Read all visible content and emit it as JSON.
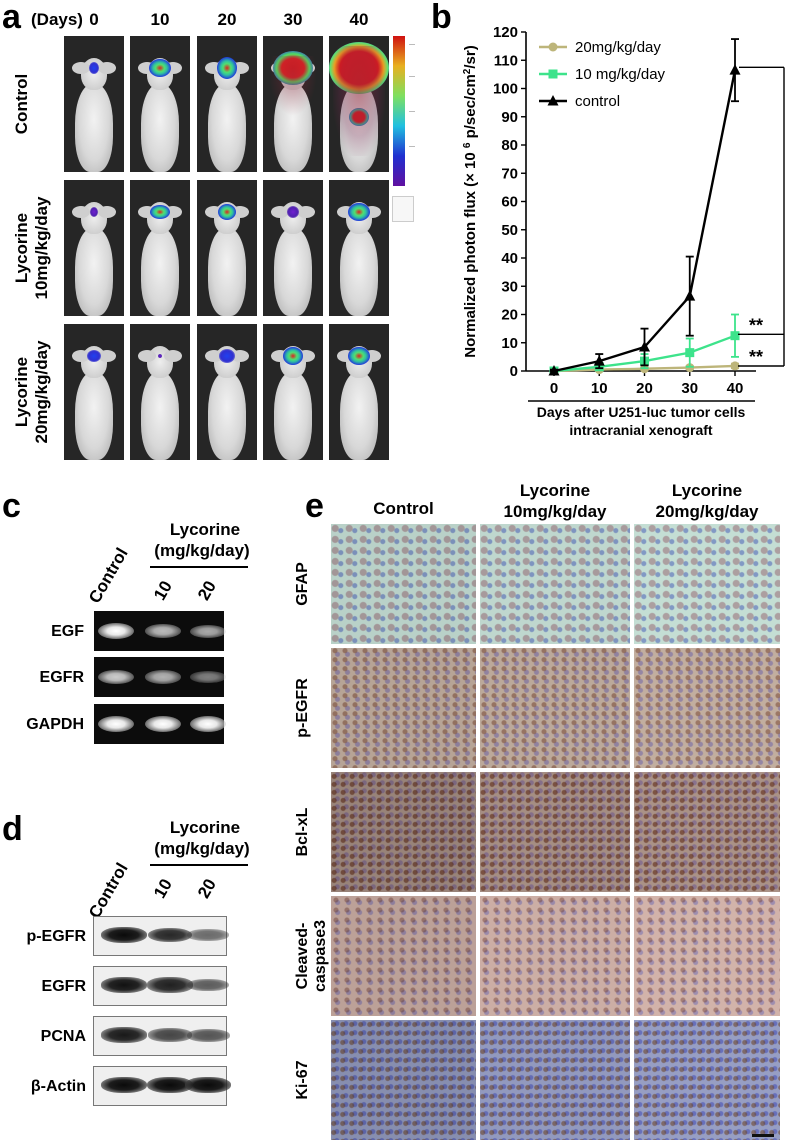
{
  "panel_a": {
    "label": "a",
    "days_label": "(Days)",
    "days": [
      "0",
      "10",
      "20",
      "30",
      "40"
    ],
    "rows": [
      {
        "line1": "Control",
        "line2": ""
      },
      {
        "line1": "Lycorine",
        "line2": "10mg/kg/day"
      },
      {
        "line1": "Lycorine",
        "line2": "20mg/kg/day"
      }
    ]
  },
  "panel_b": {
    "label": "b",
    "chart_data": {
      "type": "line",
      "x": [
        0,
        10,
        20,
        30,
        40
      ],
      "xtick_labels": [
        "0",
        "10",
        "20",
        "30",
        "40"
      ],
      "series": [
        {
          "name": "20mg/kg/day",
          "color": "#bdb57a",
          "marker": "circle",
          "values": [
            0,
            0.5,
            0.8,
            1.2,
            1.8
          ],
          "errors": [
            0.3,
            0.3,
            0.4,
            0.5,
            0.8
          ]
        },
        {
          "name": "10 mg/kg/day",
          "color": "#3de38b",
          "marker": "square",
          "values": [
            0,
            1.5,
            3.5,
            6.5,
            12.5
          ],
          "errors": [
            0.5,
            1.0,
            2.5,
            5.0,
            7.5
          ]
        },
        {
          "name": "control",
          "color": "#000000",
          "marker": "triangle",
          "values": [
            0,
            3.5,
            8.5,
            26.5,
            106.5
          ],
          "errors": [
            0.5,
            2.5,
            6.5,
            14.0,
            11.0
          ]
        }
      ],
      "ylabel": "Normalized photon flux (× 10 6 p/sec/cm2/sr)",
      "ylabel_parts": {
        "pre": "Normalized photon flux (× 10 ",
        "sup1": "6",
        "mid": " p/sec/cm",
        "sup2": "2",
        "post": "/sr)"
      },
      "xlabel_line1": "Days  after U251-luc tumor cells",
      "xlabel_line2": "intracranial  xenograft",
      "ylim": [
        0,
        120
      ],
      "yticks": [
        0,
        10,
        20,
        30,
        40,
        50,
        60,
        70,
        80,
        90,
        100,
        110,
        120
      ],
      "legend_position": "top-left",
      "significance": [
        "**",
        "**"
      ]
    }
  },
  "panel_c": {
    "label": "c",
    "control_label": "Control",
    "treatment_title": "Lycorine",
    "treatment_unit": "(mg/kg/day)",
    "doses": [
      "10",
      "20"
    ],
    "rows": [
      {
        "name": "EGF",
        "intensity": [
          1.0,
          0.6,
          0.5
        ]
      },
      {
        "name": "EGFR",
        "intensity": [
          0.7,
          0.55,
          0.25
        ]
      },
      {
        "name": "GAPDH",
        "intensity": [
          1.0,
          1.0,
          1.0
        ]
      }
    ]
  },
  "panel_d": {
    "label": "d",
    "control_label": "Control",
    "treatment_title": "Lycorine",
    "treatment_unit": "(mg/kg/day)",
    "doses": [
      "10",
      "20"
    ],
    "rows": [
      {
        "name": "p-EGFR",
        "intensity": [
          1.0,
          0.8,
          0.35
        ]
      },
      {
        "name": "EGFR",
        "intensity": [
          0.95,
          0.85,
          0.45
        ]
      },
      {
        "name": "PCNA",
        "intensity": [
          0.9,
          0.6,
          0.5
        ]
      },
      {
        "name": "β-Actin",
        "intensity": [
          1.0,
          1.0,
          1.0
        ]
      }
    ]
  },
  "panel_e": {
    "label": "e",
    "columns": [
      {
        "line1": "Control",
        "line2": ""
      },
      {
        "line1": "Lycorine",
        "line2": "10mg/kg/day"
      },
      {
        "line1": "Lycorine",
        "line2": "20mg/kg/day"
      }
    ],
    "rows": [
      {
        "line1": "GFAP",
        "line2": ""
      },
      {
        "line1": "p-EGFR",
        "line2": ""
      },
      {
        "line1": "Bcl-xL",
        "line2": ""
      },
      {
        "line1": "Cleaved-",
        "line2": "caspase3"
      },
      {
        "line1": "Ki-67",
        "line2": ""
      }
    ]
  }
}
